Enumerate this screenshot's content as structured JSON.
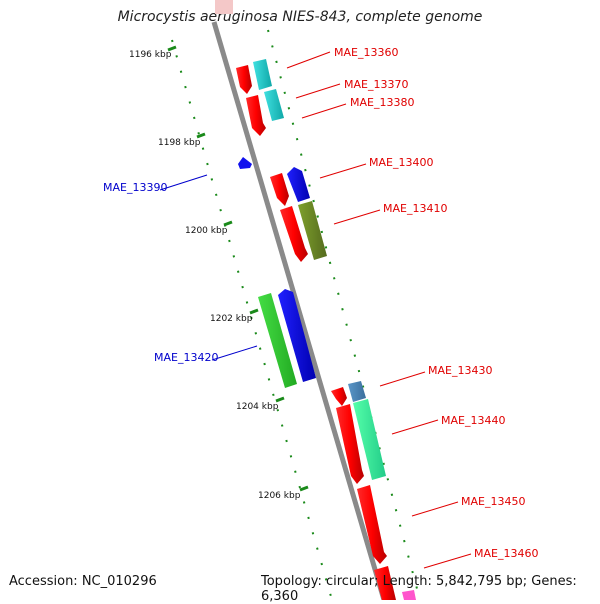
{
  "title": "Microcystis aeruginosa NIES-843, complete genome",
  "footer": {
    "accession": "Accession: NC_010296",
    "summary": "Topology: circular; Length: 5,842,795 bp; Genes: 6,360"
  },
  "ticks": [
    "1196 kbp",
    "1198 kbp",
    "1200 kbp",
    "1202 kbp",
    "1204 kbp",
    "1206 kbp"
  ],
  "gene_labels": [
    {
      "id": "MAE_13360",
      "color": "#e00000"
    },
    {
      "id": "MAE_13370",
      "color": "#e00000"
    },
    {
      "id": "MAE_13380",
      "color": "#e00000"
    },
    {
      "id": "MAE_13390",
      "color": "#0000cc"
    },
    {
      "id": "MAE_13400",
      "color": "#e00000"
    },
    {
      "id": "MAE_13410",
      "color": "#e00000"
    },
    {
      "id": "MAE_13420",
      "color": "#0000cc"
    },
    {
      "id": "MAE_13430",
      "color": "#e00000"
    },
    {
      "id": "MAE_13440",
      "color": "#e00000"
    },
    {
      "id": "MAE_13450",
      "color": "#e00000"
    },
    {
      "id": "MAE_13460",
      "color": "#e00000"
    }
  ],
  "colors": {
    "backbone": "#8a8a8a",
    "tick": "#1a8a1a",
    "forward_gene": "#ff0000",
    "reverse_gene": "#0000ff",
    "cyan": "#19c8c8",
    "olive": "#6b8e23",
    "green": "#33cc33",
    "steel_blue": "#4682b4",
    "aqua_green": "#33ee99",
    "pink": "#ff55cc"
  }
}
